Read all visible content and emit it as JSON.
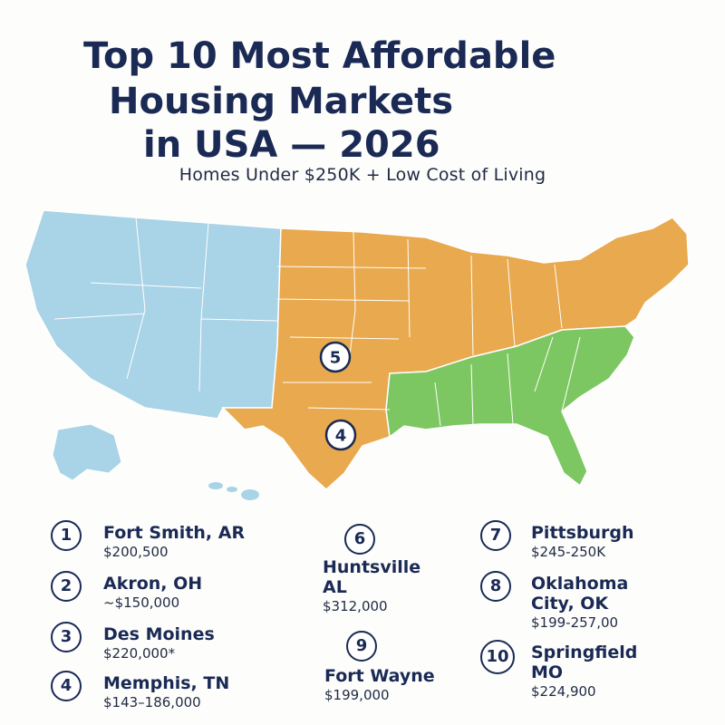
{
  "title": {
    "line1": "Top 10 Most Affordable",
    "line2": "Housing Markets",
    "line3": "in USA — 2026"
  },
  "subtitle": "Homes Under $250K + Low Cost of Living",
  "map": {
    "colors": {
      "west": "#a9d3e6",
      "central": "#e8a94f",
      "southeast": "#7cc761",
      "border": "#ffffff"
    },
    "markers": [
      "5",
      "4"
    ]
  },
  "markets": [
    {
      "rank": "1",
      "city": "Fort Smith, AR",
      "price": "$200,500"
    },
    {
      "rank": "2",
      "city": "Akron, OH",
      "price": "~$150,000"
    },
    {
      "rank": "3",
      "city": "Des Moines",
      "price": "$220,000*"
    },
    {
      "rank": "4",
      "city": "Memphis, TN",
      "price": "$143–186,000"
    },
    {
      "rank": "6",
      "city_line1": "Huntsville",
      "city_line2": "AL",
      "price": "$312,000"
    },
    {
      "rank": "9",
      "city": "Fort Wayne",
      "price": "$199,000"
    },
    {
      "rank": "7",
      "city": "Pittsburgh",
      "price": "$245-250K"
    },
    {
      "rank": "8",
      "city_line1": "Oklahoma",
      "city_line2": "City, OK",
      "price": "$199-257,00"
    },
    {
      "rank": "10",
      "city_line1": "Springfield",
      "city_line2": "MO",
      "price": "$224,900"
    }
  ]
}
